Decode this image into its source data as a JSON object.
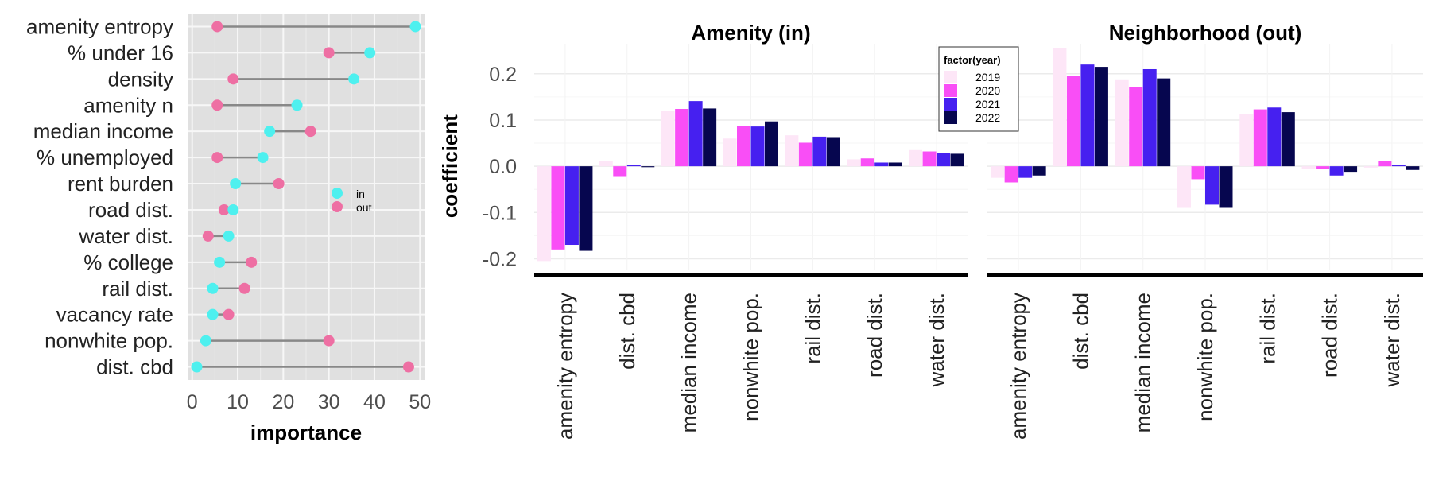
{
  "chart_data": [
    {
      "type": "dumbbell",
      "xlabel": "importance",
      "xlim": [
        -1,
        51
      ],
      "xticks": [
        0,
        10,
        20,
        30,
        40,
        50
      ],
      "legend": {
        "position": "right",
        "entries": [
          "in",
          "out"
        ]
      },
      "colors": {
        "in": "#4ef0ef",
        "out": "#ee6fa3",
        "segment": "#888888",
        "panel": "#e0e0e0"
      },
      "categories": [
        "amenity entropy",
        "% under 16",
        "density",
        "amenity n",
        "median income",
        "% unemployed",
        "rent burden",
        "road dist.",
        "water dist.",
        "% college",
        "rail dist.",
        "vacancy rate",
        "nonwhite pop.",
        "dist. cbd"
      ],
      "series": [
        {
          "name": "in",
          "values": [
            49,
            39,
            35.5,
            23,
            17,
            15.5,
            9.5,
            9,
            8,
            6,
            4.5,
            4.5,
            3,
            1
          ]
        },
        {
          "name": "out",
          "values": [
            5.5,
            30,
            9,
            5.5,
            26,
            5.5,
            19,
            7,
            3.5,
            13,
            11.5,
            8,
            30,
            47.5
          ]
        }
      ]
    },
    {
      "type": "bar",
      "ylabel": "coefficient",
      "ylim": [
        -0.225,
        0.265
      ],
      "yticks": [
        0.2,
        0.1,
        0.0,
        -0.1,
        -0.2
      ],
      "ytick_labels": [
        "0.2",
        "0.1",
        "0.0",
        "-0.1",
        "-0.2"
      ],
      "legend": {
        "title": "factor(year)",
        "position": "top-center",
        "entries": [
          "2019",
          "2020",
          "2021",
          "2022"
        ]
      },
      "colors": {
        "2019": "#fde6f7",
        "2020": "#f94ef6",
        "2021": "#4620f0",
        "2022": "#06064f"
      },
      "categories": [
        "amenity entropy",
        "dist. cbd",
        "median income",
        "nonwhite pop.",
        "rail dist.",
        "road dist.",
        "water dist."
      ],
      "facets": [
        {
          "title": "Amenity (in)",
          "series": [
            {
              "name": "2019",
              "values": [
                -0.205,
                0.012,
                0.12,
                0.06,
                0.067,
                0.015,
                0.035
              ]
            },
            {
              "name": "2020",
              "values": [
                -0.18,
                -0.023,
                0.124,
                0.087,
                0.051,
                0.017,
                0.032
              ]
            },
            {
              "name": "2021",
              "values": [
                -0.17,
                0.003,
                0.141,
                0.086,
                0.064,
                0.008,
                0.029
              ]
            },
            {
              "name": "2022",
              "values": [
                -0.183,
                -0.002,
                0.125,
                0.097,
                0.063,
                0.008,
                0.027
              ]
            }
          ]
        },
        {
          "title": "Neighborhood (out)",
          "series": [
            {
              "name": "2019",
              "values": [
                -0.025,
                0.256,
                0.188,
                -0.09,
                0.113,
                -0.005,
                -0.003
              ]
            },
            {
              "name": "2020",
              "values": [
                -0.035,
                0.196,
                0.172,
                -0.028,
                0.123,
                -0.005,
                0.012
              ]
            },
            {
              "name": "2021",
              "values": [
                -0.025,
                0.22,
                0.21,
                -0.083,
                0.127,
                -0.02,
                0.002
              ]
            },
            {
              "name": "2022",
              "values": [
                -0.02,
                0.215,
                0.19,
                -0.09,
                0.117,
                -0.012,
                -0.008
              ]
            }
          ]
        }
      ]
    }
  ]
}
